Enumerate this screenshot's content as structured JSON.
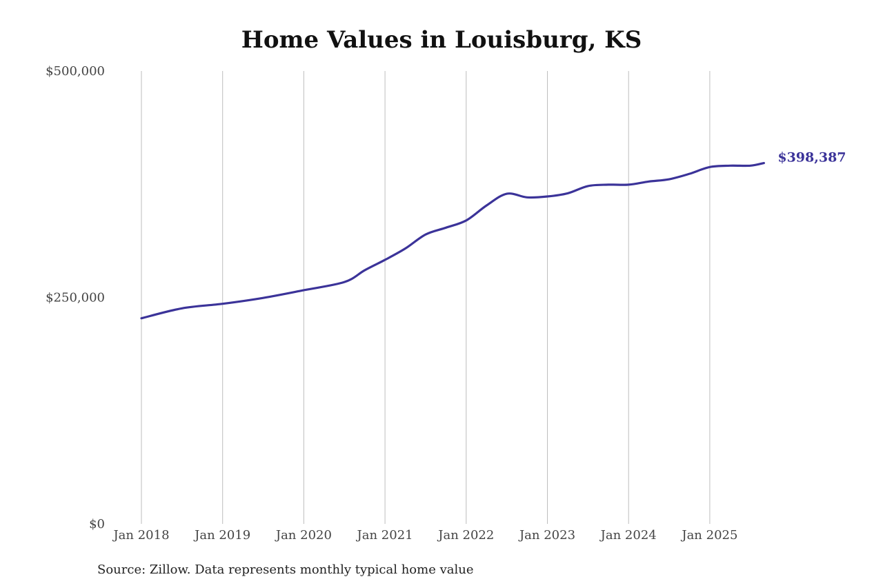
{
  "chart_data": {
    "type": "line",
    "title": "Home Values in Louisburg, KS",
    "source": "Source: Zillow. Data represents monthly typical home value",
    "xlabel": "",
    "ylabel": "",
    "ylim": [
      0,
      500000
    ],
    "y_ticks": [
      {
        "value": 0,
        "label": "$0"
      },
      {
        "value": 250000,
        "label": "$250,000"
      },
      {
        "value": 500000,
        "label": "$500,000"
      }
    ],
    "x_ticks": [
      {
        "value": "2018-01",
        "label": "Jan 2018"
      },
      {
        "value": "2019-01",
        "label": "Jan 2019"
      },
      {
        "value": "2020-01",
        "label": "Jan 2020"
      },
      {
        "value": "2021-01",
        "label": "Jan 2021"
      },
      {
        "value": "2022-01",
        "label": "Jan 2022"
      },
      {
        "value": "2023-01",
        "label": "Jan 2023"
      },
      {
        "value": "2024-01",
        "label": "Jan 2024"
      },
      {
        "value": "2025-01",
        "label": "Jan 2025"
      }
    ],
    "grid": "vertical",
    "line_color": "#3b3399",
    "end_label": "$398,387",
    "x": [
      "2018-01",
      "2018-07",
      "2019-01",
      "2019-07",
      "2020-01",
      "2020-07",
      "2020-10",
      "2021-01",
      "2021-04",
      "2021-07",
      "2021-10",
      "2022-01",
      "2022-04",
      "2022-07",
      "2022-10",
      "2023-01",
      "2023-04",
      "2023-07",
      "2023-10",
      "2024-01",
      "2024-04",
      "2024-07",
      "2024-10",
      "2025-01",
      "2025-04",
      "2025-07",
      "2025-09"
    ],
    "values": [
      227000,
      238000,
      243000,
      249500,
      258000,
      267000,
      280000,
      291500,
      304000,
      319500,
      327000,
      335000,
      351500,
      364500,
      360500,
      361500,
      365000,
      373000,
      374500,
      374500,
      378000,
      380500,
      386500,
      394000,
      395500,
      395500,
      398387
    ]
  }
}
